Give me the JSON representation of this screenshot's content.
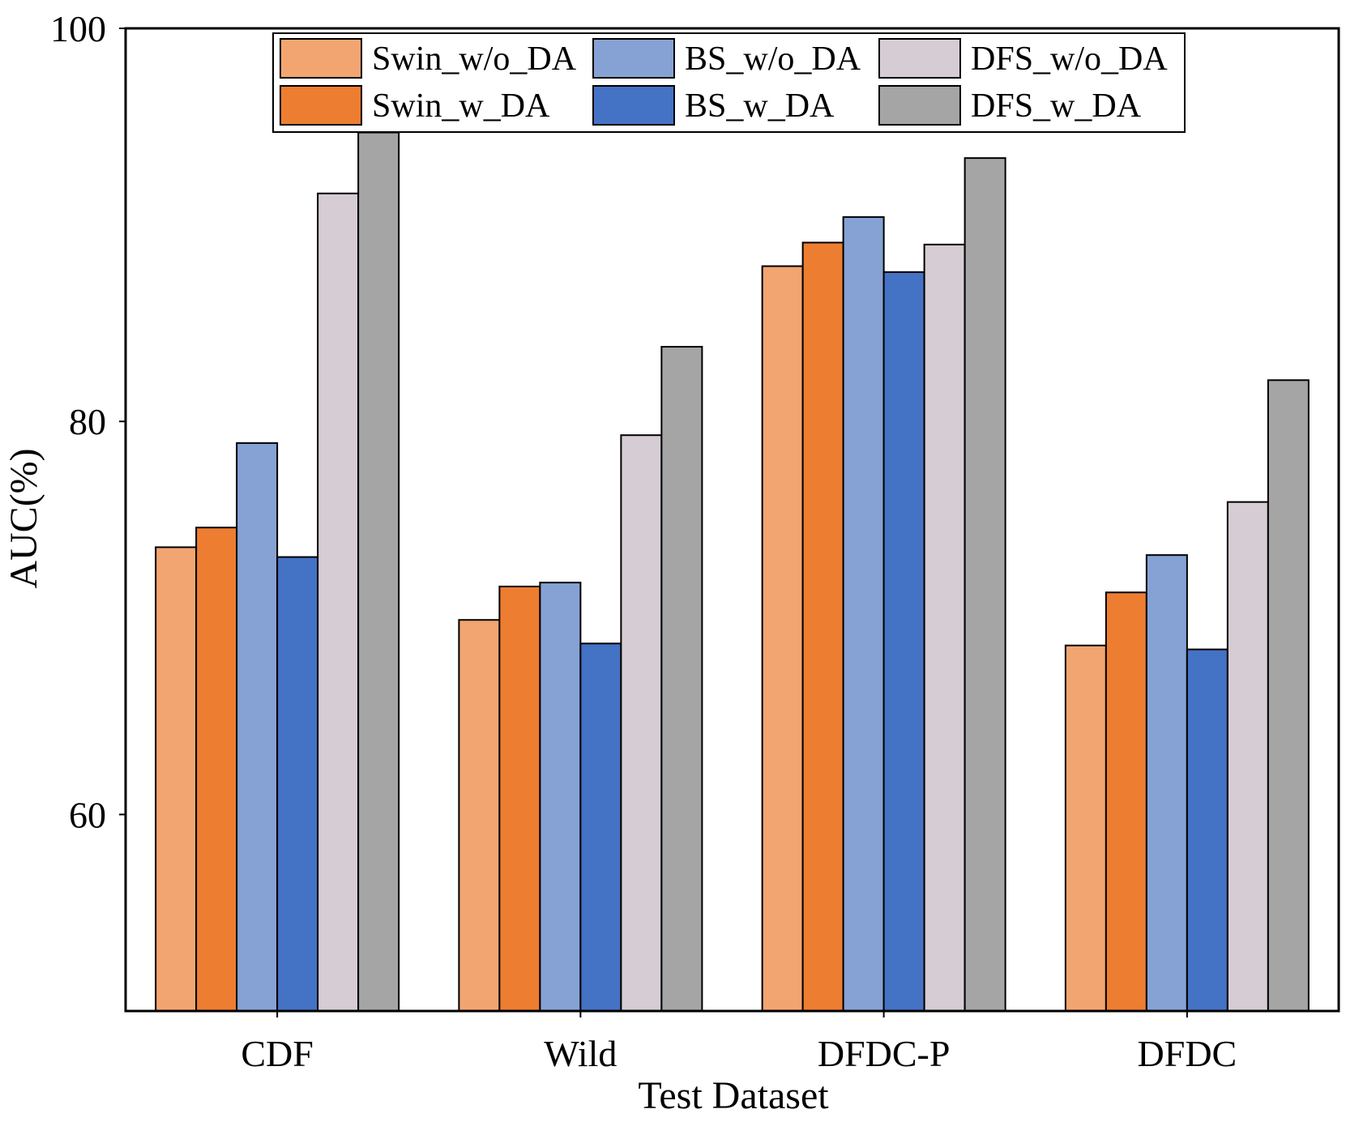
{
  "chart_data": {
    "type": "bar",
    "title": "",
    "xlabel": "Test Dataset",
    "ylabel": "AUC(%)",
    "ylim": [
      50,
      100
    ],
    "yticks": [
      60,
      80,
      100
    ],
    "grid": false,
    "legend_position": "top",
    "categories": [
      "CDF",
      "Wild",
      "DFDC-P",
      "DFDC"
    ],
    "series": [
      {
        "name": "Swin_w/o_DA",
        "color": "#F2A571",
        "values": [
          73.6,
          69.9,
          87.9,
          68.6
        ]
      },
      {
        "name": "Swin_w_DA",
        "color": "#ED7D31",
        "values": [
          74.6,
          71.6,
          89.1,
          71.3
        ]
      },
      {
        "name": "BS_w/o_DA",
        "color": "#86A2D4",
        "values": [
          78.9,
          71.8,
          90.4,
          73.2
        ]
      },
      {
        "name": "BS_w_DA",
        "color": "#4472C4",
        "values": [
          73.1,
          68.7,
          87.6,
          68.4
        ]
      },
      {
        "name": "DFS_w/o_DA",
        "color": "#D6CCD3",
        "values": [
          91.6,
          79.3,
          89.0,
          75.9
        ]
      },
      {
        "name": "DFS_w_DA",
        "color": "#A5A5A5",
        "values": [
          94.7,
          83.8,
          93.4,
          82.1
        ]
      }
    ]
  }
}
